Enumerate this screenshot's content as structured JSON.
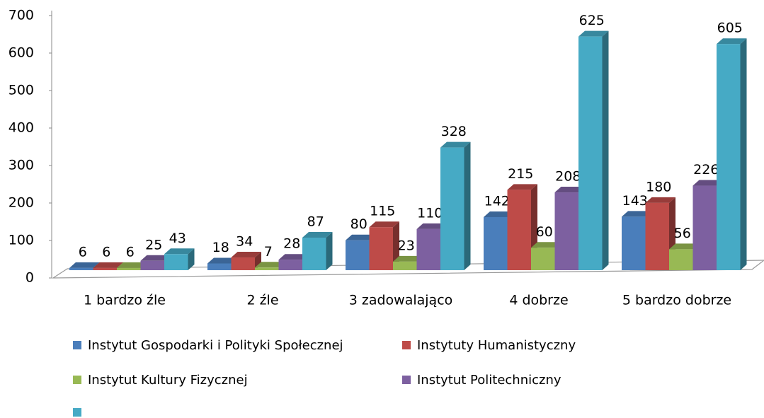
{
  "chart_data": {
    "type": "bar3d",
    "categories": [
      "1 bardzo źle",
      "2 źle",
      "3 zadowalająco",
      "4 dobrze",
      "5 bardzo dobrze"
    ],
    "series": [
      {
        "name": "Instytut Gospodarki i Polityki Społecznej",
        "color": "#4a7ebb",
        "values": [
          6,
          18,
          80,
          142,
          143
        ]
      },
      {
        "name": "Instytuty Humanistyczny",
        "color": "#be4b48",
        "values": [
          6,
          34,
          115,
          215,
          180
        ]
      },
      {
        "name": "Instytut Kultury Fizycznej",
        "color": "#98b954",
        "values": [
          6,
          7,
          23,
          60,
          56
        ]
      },
      {
        "name": "Instytut Politechniczny",
        "color": "#7d60a0",
        "values": [
          25,
          28,
          110,
          208,
          226
        ]
      },
      {
        "color": "#46aac5",
        "values": [
          43,
          87,
          328,
          625,
          605
        ]
      }
    ],
    "ylim": [
      0,
      700
    ],
    "yticks": [
      0,
      100,
      200,
      300,
      400,
      500,
      600,
      700
    ]
  }
}
